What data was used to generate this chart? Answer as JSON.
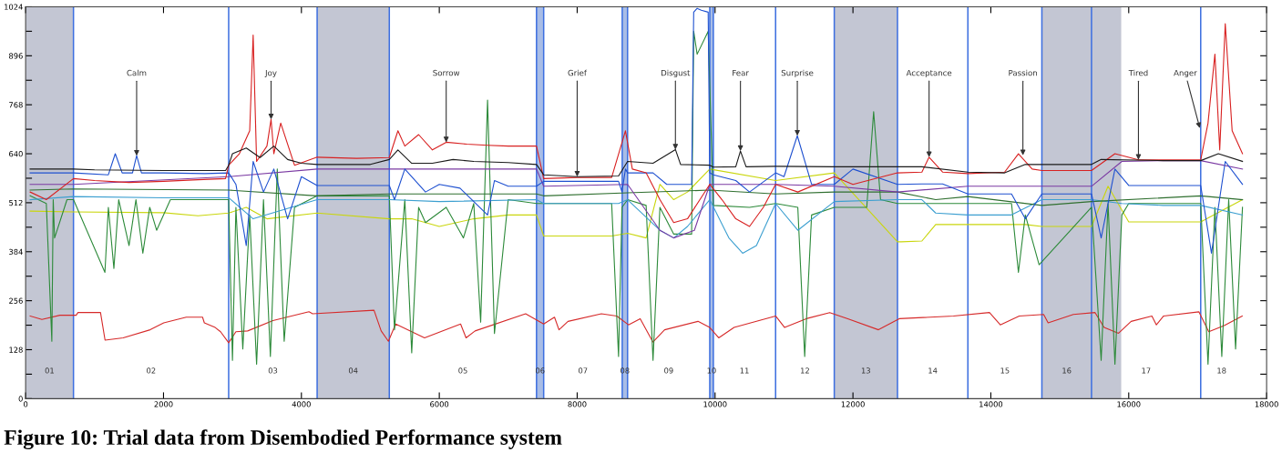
{
  "chart_data": {
    "type": "line",
    "xlim": [
      0,
      18000
    ],
    "xticks": [
      0,
      2000,
      4000,
      6000,
      8000,
      10000,
      12000,
      14000,
      16000,
      18000
    ],
    "ylim": [
      0,
      1024
    ],
    "yticks": [
      0,
      {
        "value": 64,
        "label": null
      },
      128,
      {
        "value": 192,
        "label": null
      },
      256,
      {
        "value": 320,
        "label": null
      },
      384,
      {
        "value": 448,
        "label": null
      },
      512,
      {
        "value": 576,
        "label": null
      },
      640,
      {
        "value": 704,
        "label": null
      },
      768,
      {
        "value": 832,
        "label": null
      },
      896,
      {
        "value": 960,
        "label": null
      },
      1024
    ],
    "bands": [
      {
        "axis": "x",
        "from": 0,
        "to": 694,
        "color": "#c3c6d3"
      },
      {
        "axis": "x",
        "from": 4228,
        "to": 5275,
        "color": "#c3c6d3"
      },
      {
        "axis": "x",
        "from": 7410,
        "to": 7514,
        "color": "#a9bde6"
      },
      {
        "axis": "x",
        "from": 8653,
        "to": 8731,
        "color": "#a9bde6"
      },
      {
        "axis": "x",
        "from": 9923,
        "to": 9975,
        "color": "#a9bde6"
      },
      {
        "axis": "x",
        "from": 11729,
        "to": 12646,
        "color": "#c3c6d3"
      },
      {
        "axis": "x",
        "from": 14740,
        "to": 15460,
        "color": "#c3c6d3"
      },
      {
        "axis": "x",
        "from": 15460,
        "to": 15891,
        "color": "#c3c6d3"
      }
    ],
    "ref_lines": [
      {
        "axis": "x",
        "value": 694,
        "color": "#3d6fe0"
      },
      {
        "axis": "x",
        "value": 2945,
        "color": "#3d6fe0"
      },
      {
        "axis": "x",
        "value": 4228,
        "color": "#3d6fe0"
      },
      {
        "axis": "x",
        "value": 5275,
        "color": "#3d6fe0"
      },
      {
        "axis": "x",
        "value": 7410,
        "color": "#3d6fe0"
      },
      {
        "axis": "x",
        "value": 7514,
        "color": "#3d6fe0"
      },
      {
        "axis": "x",
        "value": 8653,
        "color": "#3d6fe0"
      },
      {
        "axis": "x",
        "value": 8731,
        "color": "#3d6fe0"
      },
      {
        "axis": "x",
        "value": 9923,
        "color": "#3d6fe0"
      },
      {
        "axis": "x",
        "value": 9975,
        "color": "#3d6fe0"
      },
      {
        "axis": "x",
        "value": 10878,
        "color": "#3d6fe0"
      },
      {
        "axis": "x",
        "value": 11729,
        "color": "#3d6fe0"
      },
      {
        "axis": "x",
        "value": 12646,
        "color": "#3d6fe0"
      },
      {
        "axis": "x",
        "value": 13667,
        "color": "#3d6fe0"
      },
      {
        "axis": "x",
        "value": 14740,
        "color": "#3d6fe0"
      },
      {
        "axis": "x",
        "value": 15460,
        "color": "#3d6fe0"
      },
      {
        "axis": "x",
        "value": 17044,
        "color": "#3d6fe0"
      }
    ],
    "series": [
      {
        "color": "#d62a2a",
        "x": [
          65,
          236,
          497,
          733,
          759,
          1086,
          1152,
          1414,
          1806,
          2003,
          2330,
          2566,
          2592,
          2749,
          2827,
          2945,
          3050,
          3220,
          3587,
          4110,
          4163,
          5053,
          5157,
          5262,
          5367,
          5786,
          6309,
          6388,
          6519,
          7252,
          7514,
          7671,
          7736,
          7867,
          8351,
          8574,
          8744,
          8914,
          9098,
          9268,
          9752,
          9922,
          10053,
          10276,
          10878,
          11009,
          11323,
          11663,
          11925,
          12370,
          12671,
          13457,
          13980,
          14137,
          14412,
          14766,
          14831,
          15197,
          15512,
          15643,
          15852,
          16035,
          16336,
          16401,
          16506,
          17017,
          17161,
          17384,
          17646
        ],
        "values": [
          216,
          207,
          218,
          218,
          225,
          225,
          153,
          159,
          180,
          198,
          213,
          213,
          198,
          186,
          175,
          146,
          175,
          177,
          204,
          227,
          222,
          231,
          177,
          150,
          195,
          159,
          195,
          159,
          177,
          222,
          195,
          213,
          180,
          202,
          222,
          216,
          193,
          209,
          148,
          180,
          202,
          186,
          159,
          186,
          216,
          186,
          209,
          225,
          209,
          180,
          209,
          216,
          225,
          193,
          216,
          220,
          198,
          220,
          225,
          186,
          171,
          202,
          216,
          193,
          216,
          227,
          175,
          191,
          216
        ]
      },
      {
        "color": "#c9d60c",
        "x": [
          65,
          694,
          2000,
          2500,
          2945,
          3200,
          3500,
          4228,
          5275,
          5600,
          6000,
          6500,
          7000,
          7410,
          7514,
          8500,
          8731,
          9000,
          9200,
          9400,
          9600,
          9923,
          10878,
          11729,
          12646,
          12700,
          13000,
          13200,
          13667,
          14500,
          14740,
          15460,
          15700,
          16000,
          17044,
          17650
        ],
        "values": [
          490,
          488,
          486,
          478,
          485,
          500,
          470,
          485,
          470,
          470,
          450,
          470,
          480,
          480,
          425,
          425,
          432,
          420,
          560,
          520,
          540,
          600,
          570,
          590,
          410,
          410,
          412,
          455,
          455,
          455,
          450,
          450,
          555,
          462,
          462,
          520
        ]
      },
      {
        "color": "#2d8a3a",
        "x": [
          65,
          300,
          380,
          400,
          420,
          600,
          694,
          1150,
          1200,
          1280,
          1350,
          1500,
          1600,
          1700,
          1800,
          1900,
          2100,
          2945,
          3000,
          3050,
          3150,
          3250,
          3350,
          3450,
          3550,
          3650,
          3750,
          3900,
          4228,
          5275,
          5350,
          5500,
          5600,
          5700,
          5800,
          6100,
          6350,
          6500,
          6600,
          6700,
          6800,
          7000,
          7410,
          7514,
          8500,
          8600,
          8650,
          8731,
          9000,
          9100,
          9200,
          9400,
          9660,
          9690,
          9740,
          9900,
          9975,
          10500,
          10878,
          11200,
          11300,
          11400,
          11729,
          12200,
          12300,
          12400,
          12646,
          14300,
          14400,
          14500,
          14700,
          15460,
          15600,
          15700,
          15800,
          15900,
          16000,
          17044,
          17150,
          17250,
          17350,
          17450,
          17550,
          17650
        ],
        "values": [
          530,
          510,
          150,
          520,
          420,
          520,
          520,
          330,
          500,
          340,
          520,
          400,
          520,
          380,
          500,
          440,
          520,
          520,
          100,
          500,
          130,
          480,
          90,
          520,
          110,
          600,
          150,
          500,
          530,
          530,
          180,
          520,
          120,
          500,
          460,
          500,
          420,
          510,
          200,
          780,
          170,
          520,
          510,
          510,
          510,
          110,
          500,
          520,
          505,
          100,
          500,
          430,
          430,
          960,
          900,
          960,
          505,
          500,
          510,
          500,
          110,
          480,
          500,
          500,
          750,
          520,
          510,
          510,
          330,
          480,
          350,
          500,
          100,
          510,
          90,
          480,
          510,
          510,
          90,
          500,
          110,
          520,
          130,
          500
        ]
      },
      {
        "color": "#3c9fd0",
        "x": [
          65,
          694,
          2000,
          2945,
          3300,
          4228,
          5275,
          6000,
          7410,
          7514,
          8600,
          8731,
          9200,
          9400,
          9600,
          9923,
          10200,
          10400,
          10600,
          10878,
          11200,
          11729,
          12646,
          13000,
          13200,
          13667,
          14300,
          14740,
          15460,
          15900,
          16500,
          17044,
          17650
        ],
        "values": [
          520,
          528,
          525,
          525,
          470,
          520,
          520,
          515,
          520,
          510,
          510,
          520,
          440,
          420,
          450,
          520,
          420,
          380,
          400,
          510,
          440,
          515,
          520,
          520,
          485,
          480,
          480,
          520,
          520,
          510,
          505,
          505,
          480
        ]
      },
      {
        "color": "#2f6f2f",
        "x": [
          65,
          694,
          2945,
          4228,
          5275,
          7410,
          7514,
          8731,
          9923,
          10878,
          11729,
          12646,
          13200,
          13667,
          14740,
          15460,
          17044,
          17650
        ],
        "values": [
          545,
          548,
          545,
          530,
          535,
          535,
          530,
          538,
          545,
          535,
          540,
          540,
          520,
          528,
          505,
          515,
          530,
          520
        ]
      },
      {
        "color": "#7b3aa3",
        "x": [
          65,
          694,
          2945,
          4228,
          5275,
          7410,
          7514,
          8731,
          9200,
          9400,
          9700,
          9923,
          10878,
          11729,
          12646,
          13667,
          14740,
          15460,
          15900,
          16500,
          17044,
          17650
        ],
        "values": [
          560,
          560,
          580,
          600,
          600,
          600,
          555,
          560,
          440,
          420,
          440,
          560,
          560,
          555,
          540,
          555,
          555,
          555,
          620,
          622,
          622,
          600
        ]
      },
      {
        "color": "#1e50d0",
        "x": [
          65,
          694,
          1200,
          1300,
          1400,
          1550,
          1610,
          1680,
          2000,
          2600,
          2945,
          3050,
          3200,
          3300,
          3450,
          3600,
          3800,
          4000,
          4228,
          5275,
          5350,
          5500,
          5800,
          6000,
          6300,
          6700,
          6800,
          7000,
          7410,
          7514,
          8600,
          8650,
          8700,
          8731,
          9100,
          9300,
          9660,
          9690,
          9740,
          9800,
          9900,
          9923,
          9975,
          10300,
          10500,
          10878,
          11000,
          11193,
          11400,
          11729,
          12000,
          12646,
          13000,
          13300,
          13667,
          14300,
          14500,
          14740,
          15460,
          15600,
          15800,
          16000,
          17044,
          17200,
          17400,
          17650
        ],
        "values": [
          590,
          590,
          585,
          640,
          590,
          590,
          635,
          590,
          590,
          588,
          590,
          560,
          400,
          620,
          540,
          600,
          470,
          580,
          557,
          557,
          520,
          600,
          540,
          560,
          550,
          480,
          570,
          555,
          555,
          568,
          568,
          540,
          600,
          590,
          590,
          560,
          560,
          1010,
          1020,
          1015,
          1010,
          590,
          585,
          570,
          540,
          590,
          580,
          687,
          560,
          560,
          600,
          560,
          561,
          561,
          535,
          535,
          470,
          535,
          535,
          420,
          600,
          557,
          557,
          380,
          620,
          560
        ]
      },
      {
        "color": "#d82020",
        "x": [
          65,
          300,
          694,
          1000,
          1500,
          2000,
          2500,
          2900,
          2945,
          3100,
          3250,
          3300,
          3350,
          3500,
          3560,
          3600,
          3700,
          3900,
          4228,
          4800,
          5275,
          5400,
          5500,
          5700,
          5900,
          6100,
          6400,
          6700,
          7000,
          7410,
          7514,
          8000,
          8500,
          8700,
          8800,
          9000,
          9200,
          9400,
          9600,
          9923,
          10100,
          10300,
          10500,
          10700,
          10878,
          11200,
          11729,
          12000,
          12646,
          13000,
          13104,
          13300,
          13667,
          14200,
          14400,
          14600,
          14740,
          15460,
          15800,
          16141,
          16500,
          17044,
          17150,
          17250,
          17320,
          17400,
          17500,
          17650
        ],
        "values": [
          540,
          520,
          575,
          570,
          565,
          568,
          572,
          575,
          610,
          640,
          700,
          950,
          620,
          660,
          730,
          640,
          720,
          610,
          631,
          628,
          630,
          700,
          660,
          690,
          650,
          670,
          665,
          662,
          660,
          660,
          575,
          578,
          578,
          700,
          600,
          590,
          520,
          460,
          470,
          560,
          520,
          470,
          450,
          500,
          560,
          540,
          580,
          560,
          590,
          592,
          631,
          592,
          588,
          592,
          640,
          600,
          596,
          596,
          640,
          624,
          624,
          624,
          720,
          900,
          650,
          980,
          700,
          640
        ]
      },
      {
        "color": "#1a1a1a",
        "x": [
          65,
          694,
          1000,
          2000,
          2900,
          2945,
          3000,
          3200,
          3400,
          3600,
          3800,
          4000,
          4228,
          5000,
          5275,
          5400,
          5600,
          5900,
          6200,
          6500,
          7000,
          7410,
          7514,
          8000,
          8600,
          8731,
          9100,
          9425,
          9500,
          9923,
          9975,
          10300,
          10368,
          10450,
          10878,
          11729,
          12646,
          13000,
          13667,
          14200,
          14500,
          14740,
          15460,
          15600,
          16500,
          17044,
          17300,
          17650
        ],
        "values": [
          600,
          600,
          598,
          596,
          596,
          610,
          640,
          655,
          630,
          660,
          625,
          615,
          612,
          612,
          625,
          650,
          615,
          615,
          625,
          620,
          617,
          612,
          585,
          580,
          582,
          620,
          615,
          651,
          612,
          610,
          605,
          606,
          647,
          606,
          607,
          606,
          606,
          606,
          592,
          590,
          612,
          612,
          612,
          625,
          622,
          622,
          640,
          620
        ]
      }
    ],
    "annotations": [
      "01",
      "02",
      "03",
      "04",
      "05",
      "06",
      "07",
      "08",
      "09",
      "10",
      "11",
      "12",
      "13",
      "14",
      "15",
      "16",
      "17",
      "18",
      {
        "text": "Calm",
        "x": 1610,
        "y": 635
      },
      {
        "text": "Joy",
        "x": 3560,
        "y": 730
      },
      {
        "text": "Sorrow",
        "x": 6100,
        "y": 670
      },
      {
        "text": "Grief",
        "x": 8000,
        "y": 580
      },
      {
        "text": "Disgust",
        "x": 9425,
        "y": 651
      },
      {
        "text": "Fear",
        "x": 10368,
        "y": 647
      },
      {
        "text": "Surprise",
        "x": 11193,
        "y": 687
      },
      {
        "text": "Acceptance",
        "x": 13104,
        "y": 631
      },
      {
        "text": "Passion",
        "x": 14465,
        "y": 636
      },
      {
        "text": "Tired",
        "x": 16141,
        "y": 624
      },
      {
        "text": "Anger",
        "x": 17031,
        "y": 707
      },
      "Figure 10: Trial data from Disembodied Performance system"
    ]
  }
}
